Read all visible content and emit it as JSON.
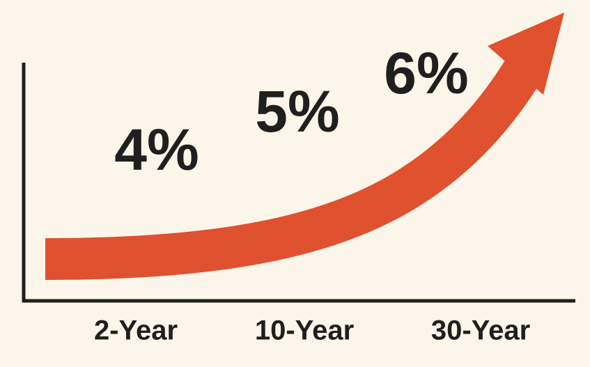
{
  "chart_data": {
    "type": "line",
    "categories": [
      "2-Year",
      "10-Year",
      "30-Year"
    ],
    "values": [
      4,
      5,
      6
    ],
    "value_labels": [
      "4%",
      "5%",
      "6%"
    ],
    "color": "#e0512f"
  }
}
